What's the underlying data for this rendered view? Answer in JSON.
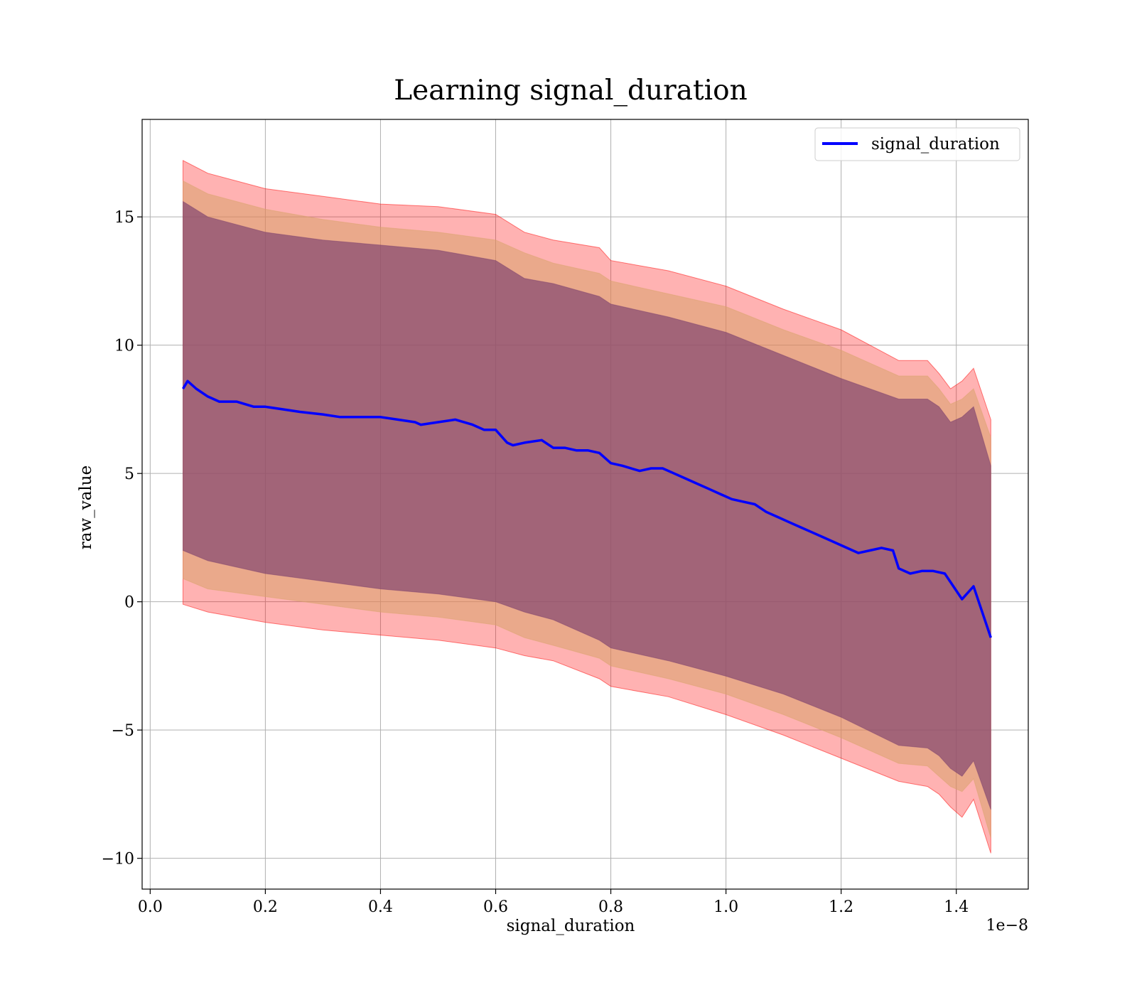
{
  "chart_data": {
    "type": "line",
    "title": "Learning signal_duration",
    "xlabel": "signal_duration",
    "ylabel": "raw_value",
    "x_offset_text": "1e−8",
    "xlim": [
      -0.014,
      1.525
    ],
    "ylim": [
      -11.2,
      18.8
    ],
    "x_ticks": [
      0.0,
      0.2,
      0.4,
      0.6,
      0.8,
      1.0,
      1.2,
      1.4
    ],
    "x_tick_labels": [
      "0.0",
      "0.2",
      "0.4",
      "0.6",
      "0.8",
      "1.0",
      "1.2",
      "1.4"
    ],
    "y_ticks": [
      -10,
      -5,
      0,
      5,
      10,
      15
    ],
    "y_tick_labels": [
      "−10",
      "−5",
      "0",
      "5",
      "10",
      "15"
    ],
    "grid": true,
    "legend_position": "upper-right",
    "series": [
      {
        "name": "signal_duration",
        "color": "#0000ff",
        "x": [
          0.057,
          0.065,
          0.08,
          0.1,
          0.12,
          0.15,
          0.18,
          0.2,
          0.23,
          0.26,
          0.3,
          0.33,
          0.36,
          0.4,
          0.43,
          0.46,
          0.47,
          0.5,
          0.53,
          0.56,
          0.58,
          0.6,
          0.62,
          0.63,
          0.65,
          0.68,
          0.7,
          0.72,
          0.74,
          0.76,
          0.78,
          0.8,
          0.82,
          0.85,
          0.87,
          0.89,
          0.91,
          0.93,
          0.95,
          0.97,
          0.99,
          1.01,
          1.03,
          1.05,
          1.07,
          1.09,
          1.11,
          1.13,
          1.15,
          1.17,
          1.19,
          1.21,
          1.23,
          1.25,
          1.27,
          1.29,
          1.3,
          1.32,
          1.34,
          1.36,
          1.38,
          1.41,
          1.43,
          1.46
        ],
        "y": [
          8.3,
          8.6,
          8.3,
          8.0,
          7.8,
          7.8,
          7.6,
          7.6,
          7.5,
          7.4,
          7.3,
          7.2,
          7.2,
          7.2,
          7.1,
          7.0,
          6.9,
          7.0,
          7.1,
          6.9,
          6.7,
          6.7,
          6.2,
          6.1,
          6.2,
          6.3,
          6.0,
          6.0,
          5.9,
          5.9,
          5.8,
          5.4,
          5.3,
          5.1,
          5.2,
          5.2,
          5.0,
          4.8,
          4.6,
          4.4,
          4.2,
          4.0,
          3.9,
          3.8,
          3.5,
          3.3,
          3.1,
          2.9,
          2.7,
          2.5,
          2.3,
          2.1,
          1.9,
          2.0,
          2.1,
          2.0,
          1.3,
          1.1,
          1.2,
          1.2,
          1.1,
          0.1,
          0.6,
          -1.4
        ]
      }
    ],
    "bands": [
      {
        "color": "#ff0000",
        "opacity": 0.3,
        "x": [
          0.057,
          0.1,
          0.2,
          0.3,
          0.4,
          0.5,
          0.6,
          0.65,
          0.7,
          0.78,
          0.8,
          0.9,
          1.0,
          1.1,
          1.2,
          1.3,
          1.35,
          1.37,
          1.39,
          1.41,
          1.43,
          1.46
        ],
        "upper": [
          17.2,
          16.7,
          16.1,
          15.8,
          15.5,
          15.4,
          15.1,
          14.4,
          14.1,
          13.8,
          13.3,
          12.9,
          12.3,
          11.4,
          10.6,
          9.4,
          9.4,
          8.9,
          8.3,
          8.6,
          9.1,
          7.1
        ],
        "lower": [
          -0.1,
          -0.4,
          -0.8,
          -1.1,
          -1.3,
          -1.5,
          -1.8,
          -2.1,
          -2.3,
          -3.0,
          -3.3,
          -3.7,
          -4.4,
          -5.2,
          -6.1,
          -7.0,
          -7.2,
          -7.5,
          -8.0,
          -8.4,
          -7.7,
          -9.8
        ]
      },
      {
        "color": "#d9a36b",
        "opacity": 0.55,
        "x": [
          0.057,
          0.1,
          0.2,
          0.3,
          0.4,
          0.5,
          0.6,
          0.65,
          0.7,
          0.78,
          0.8,
          0.9,
          1.0,
          1.1,
          1.2,
          1.3,
          1.35,
          1.37,
          1.39,
          1.41,
          1.43,
          1.46
        ],
        "upper": [
          16.4,
          15.9,
          15.3,
          14.9,
          14.6,
          14.4,
          14.1,
          13.6,
          13.2,
          12.8,
          12.5,
          12.0,
          11.5,
          10.6,
          9.8,
          8.8,
          8.8,
          8.3,
          7.7,
          7.9,
          8.3,
          6.4
        ],
        "lower": [
          0.9,
          0.5,
          0.2,
          -0.1,
          -0.4,
          -0.6,
          -0.9,
          -1.4,
          -1.7,
          -2.2,
          -2.5,
          -3.0,
          -3.6,
          -4.4,
          -5.3,
          -6.3,
          -6.4,
          -6.8,
          -7.2,
          -7.4,
          -6.9,
          -9.2
        ]
      },
      {
        "color": "#7b3f6e",
        "opacity": 0.65,
        "x": [
          0.057,
          0.1,
          0.2,
          0.3,
          0.4,
          0.5,
          0.6,
          0.65,
          0.7,
          0.78,
          0.8,
          0.9,
          1.0,
          1.1,
          1.2,
          1.3,
          1.35,
          1.37,
          1.39,
          1.41,
          1.43,
          1.46
        ],
        "upper": [
          15.6,
          15.0,
          14.4,
          14.1,
          13.9,
          13.7,
          13.3,
          12.6,
          12.4,
          11.9,
          11.6,
          11.1,
          10.5,
          9.6,
          8.7,
          7.9,
          7.9,
          7.6,
          7.0,
          7.2,
          7.6,
          5.3
        ],
        "lower": [
          2.0,
          1.6,
          1.1,
          0.8,
          0.5,
          0.3,
          0.0,
          -0.4,
          -0.7,
          -1.5,
          -1.8,
          -2.3,
          -2.9,
          -3.6,
          -4.5,
          -5.6,
          -5.7,
          -6.0,
          -6.5,
          -6.8,
          -6.2,
          -8.1
        ]
      }
    ],
    "legend": [
      {
        "label": "signal_duration",
        "color": "#0000ff"
      }
    ]
  }
}
